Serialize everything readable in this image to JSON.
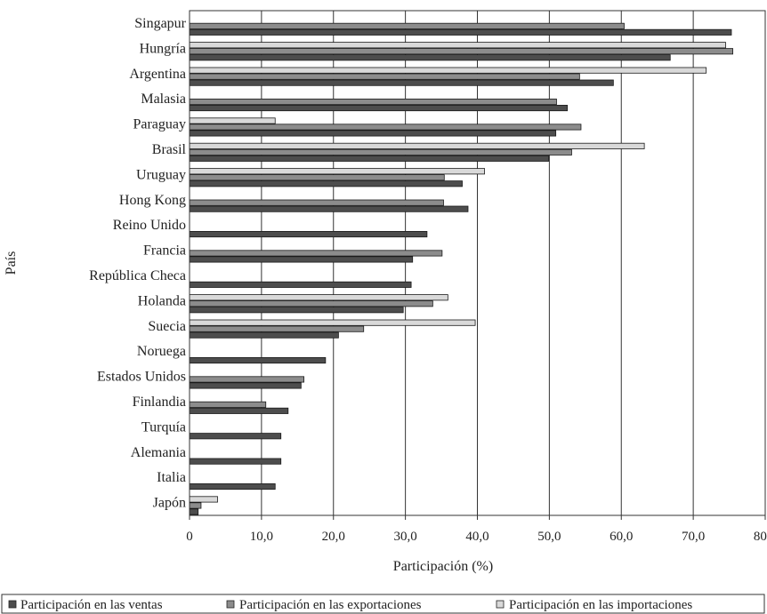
{
  "chart_data": {
    "type": "bar",
    "orientation": "horizontal",
    "title": "",
    "xlabel": "Participación (%)",
    "ylabel": "País",
    "xlim": [
      0,
      80
    ],
    "xticks": [
      "0",
      "10,0",
      "20,0",
      "30,0",
      "40,0",
      "50,0",
      "60,0",
      "70,0",
      "80,0"
    ],
    "grid": "vertical",
    "legend_position": "bottom",
    "categories": [
      "Singapur",
      "Hungría",
      "Argentina",
      "Malasia",
      "Paraguay",
      "Brasil",
      "Uruguay",
      "Hong Kong",
      "Reino Unido",
      "Francia",
      "República Checa",
      "Holanda",
      "Suecia",
      "Noruega",
      "Estados Unidos",
      "Finlandia",
      "Turquía",
      "Alemania",
      "Italia",
      "Japón"
    ],
    "series": [
      {
        "name": "Participación en las importaciones",
        "color": "#d9d9d9",
        "values": [
          null,
          74.5,
          71.8,
          null,
          11.9,
          63.2,
          41.0,
          null,
          null,
          null,
          null,
          35.9,
          39.7,
          null,
          null,
          null,
          null,
          null,
          null,
          3.9
        ]
      },
      {
        "name": "Participación en las exportaciones",
        "color": "#8c8c8c",
        "values": [
          60.4,
          75.5,
          54.2,
          51.0,
          54.4,
          53.1,
          35.4,
          35.3,
          null,
          35.1,
          null,
          33.8,
          24.2,
          null,
          15.9,
          10.6,
          null,
          null,
          null,
          1.6
        ]
      },
      {
        "name": "Participación en las ventas",
        "color": "#4d4d4d",
        "values": [
          75.3,
          66.8,
          58.9,
          52.5,
          50.9,
          49.9,
          37.9,
          38.7,
          33.0,
          31.0,
          30.8,
          29.7,
          20.7,
          18.9,
          15.5,
          13.7,
          12.7,
          12.7,
          11.9,
          1.2
        ]
      }
    ],
    "legend": [
      "Participación en las ventas",
      "Participación en las exportaciones",
      "Participación en las importaciones"
    ]
  }
}
